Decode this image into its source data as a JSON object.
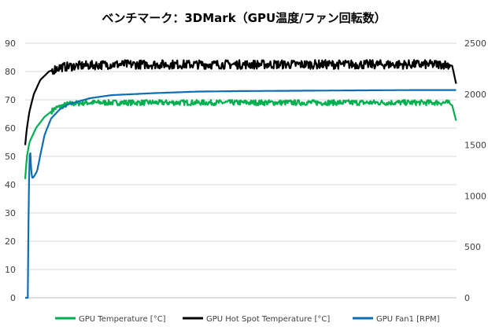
{
  "chart_data": {
    "type": "line",
    "title": "ベンチマーク：3DMark（GPU温度/ファン回転数）",
    "x": {
      "min": 0,
      "max": 1000
    },
    "y_left": {
      "min": 0,
      "max": 90,
      "ticks": [
        "0",
        "10",
        "20",
        "30",
        "40",
        "50",
        "60",
        "70",
        "80",
        "90"
      ]
    },
    "y_right": {
      "min": 0,
      "max": 2500,
      "ticks": [
        "0",
        "500",
        "1000",
        "1500",
        "2000",
        "2500"
      ]
    },
    "grid": true,
    "legend_position": "bottom",
    "series": [
      {
        "name": "GPU Temperature [°C]",
        "axis": "left",
        "color": "#00b050",
        "noise": 0.6,
        "points": [
          [
            0,
            42
          ],
          [
            4,
            50
          ],
          [
            10,
            55
          ],
          [
            25,
            60
          ],
          [
            45,
            64
          ],
          [
            70,
            67
          ],
          [
            100,
            68.5
          ],
          [
            140,
            69
          ],
          [
            200,
            69
          ],
          [
            300,
            69
          ],
          [
            500,
            69
          ],
          [
            700,
            69
          ],
          [
            900,
            69
          ],
          [
            980,
            69
          ],
          [
            990,
            68
          ],
          [
            1000,
            62
          ]
        ]
      },
      {
        "name": "GPU Hot Spot Temperature [°C]",
        "axis": "left",
        "color": "#000000",
        "noise": 1.0,
        "points": [
          [
            0,
            54
          ],
          [
            4,
            60
          ],
          [
            10,
            66
          ],
          [
            20,
            72
          ],
          [
            35,
            77
          ],
          [
            55,
            80
          ],
          [
            80,
            81.5
          ],
          [
            120,
            82
          ],
          [
            200,
            82.5
          ],
          [
            400,
            82.5
          ],
          [
            600,
            82.5
          ],
          [
            800,
            82.5
          ],
          [
            980,
            82.5
          ],
          [
            990,
            82
          ],
          [
            1000,
            75
          ]
        ]
      },
      {
        "name": "GPU Fan1 [RPM]",
        "axis": "right",
        "color": "#0e6eb4",
        "noise": 0,
        "points": [
          [
            0,
            0
          ],
          [
            6,
            0
          ],
          [
            8,
            900
          ],
          [
            10,
            1400
          ],
          [
            12,
            1420
          ],
          [
            14,
            1250
          ],
          [
            16,
            1180
          ],
          [
            18,
            1180
          ],
          [
            22,
            1200
          ],
          [
            28,
            1250
          ],
          [
            35,
            1400
          ],
          [
            45,
            1600
          ],
          [
            60,
            1760
          ],
          [
            80,
            1850
          ],
          [
            100,
            1900
          ],
          [
            150,
            1960
          ],
          [
            200,
            1990
          ],
          [
            300,
            2010
          ],
          [
            400,
            2025
          ],
          [
            500,
            2030
          ],
          [
            700,
            2035
          ],
          [
            900,
            2040
          ],
          [
            1000,
            2040
          ]
        ]
      }
    ]
  }
}
